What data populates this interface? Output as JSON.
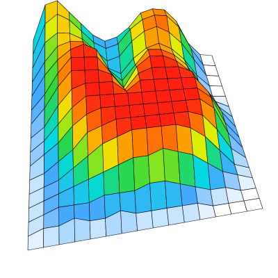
{
  "chart_data": {
    "type": "surface",
    "zlim": [
      0,
      10
    ],
    "colors": [
      "#ffffff",
      "#48a8ff",
      "#00d8e0",
      "#30d838",
      "#f0f000",
      "#ff8c00",
      "#ff2010"
    ],
    "mesh_color": "#000000",
    "z": [
      [
        0,
        7,
        8,
        6,
        4,
        2,
        1,
        2,
        4,
        7,
        8,
        8,
        6,
        2,
        0,
        0
      ],
      [
        0,
        6,
        8,
        7,
        5,
        3,
        2,
        3,
        6,
        8,
        9,
        9,
        7,
        3,
        0,
        0
      ],
      [
        0,
        5,
        7,
        7,
        6,
        4,
        2,
        3,
        6,
        8,
        9,
        8,
        6,
        3,
        0,
        0
      ],
      [
        0,
        4,
        7,
        8,
        8,
        6,
        3,
        2,
        5,
        7,
        8,
        7,
        5,
        2,
        0,
        0
      ],
      [
        0,
        4,
        7,
        9,
        10,
        9,
        5,
        3,
        6,
        9,
        9,
        8,
        6,
        2,
        0,
        0
      ],
      [
        0,
        3,
        7,
        10,
        10,
        10,
        7,
        4,
        8,
        10,
        10,
        9,
        7,
        3,
        1,
        0
      ],
      [
        0,
        3,
        7,
        10,
        10,
        10,
        9,
        6,
        9,
        10,
        10,
        10,
        9,
        5,
        2,
        0
      ],
      [
        0,
        2,
        6,
        9,
        10,
        10,
        10,
        8,
        10,
        10,
        10,
        10,
        10,
        7,
        3,
        0
      ],
      [
        0,
        2,
        5,
        8,
        10,
        10,
        10,
        10,
        10,
        10,
        10,
        10,
        10,
        8,
        3,
        0
      ],
      [
        0,
        2,
        4,
        7,
        9,
        10,
        10,
        10,
        10,
        10,
        10,
        10,
        10,
        8,
        3,
        0
      ],
      [
        0,
        1,
        3,
        5,
        8,
        9,
        10,
        10,
        10,
        10,
        10,
        10,
        9,
        6,
        2,
        0
      ],
      [
        0,
        1,
        2,
        4,
        6,
        8,
        9,
        10,
        10,
        10,
        10,
        9,
        7,
        4,
        1,
        0
      ],
      [
        0,
        1,
        2,
        3,
        4,
        5,
        6,
        7,
        7,
        8,
        7,
        6,
        4,
        2,
        1,
        0
      ],
      [
        0,
        1,
        2,
        2,
        2,
        3,
        3,
        3,
        4,
        4,
        3,
        2,
        1,
        1,
        0,
        0
      ],
      [
        0,
        1,
        1,
        2,
        1,
        1,
        2,
        1,
        1,
        1,
        1,
        1,
        0,
        0,
        0,
        0
      ],
      [
        0,
        0,
        0,
        0,
        0,
        0,
        0,
        0,
        0,
        0,
        0,
        0,
        0,
        0,
        0,
        0
      ]
    ]
  }
}
